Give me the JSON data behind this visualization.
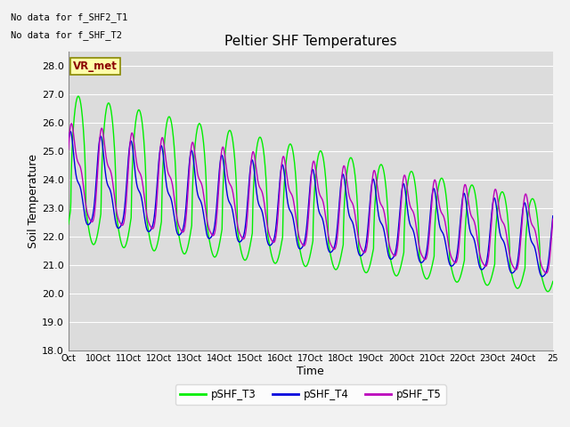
{
  "title": "Peltier SHF Temperatures",
  "xlabel": "Time",
  "ylabel": "Soil Temperature",
  "ylim": [
    18.0,
    28.5
  ],
  "yticks": [
    18.0,
    19.0,
    20.0,
    21.0,
    22.0,
    23.0,
    24.0,
    25.0,
    26.0,
    27.0,
    28.0
  ],
  "xtick_labels": [
    "Oct",
    "10Oct",
    "11Oct",
    "12Oct",
    "13Oct",
    "14Oct",
    "15Oct",
    "16Oct",
    "17Oct",
    "18Oct",
    "19Oct",
    "20Oct",
    "21Oct",
    "22Oct",
    "23Oct",
    "24Oct",
    "25"
  ],
  "note1": "No data for f_SHF2_T1",
  "note2": "No data for f_SHF_T2",
  "legend_label": "VR_met",
  "line_colors": {
    "pSHF_T3": "#00EE00",
    "pSHF_T4": "#0000DD",
    "pSHF_T5": "#BB00BB"
  },
  "bg_color": "#DCDCDC",
  "fig_color": "#F2F2F2",
  "grid_color": "#FFFFFF",
  "title_fontsize": 11,
  "axis_fontsize": 9,
  "tick_fontsize": 8
}
